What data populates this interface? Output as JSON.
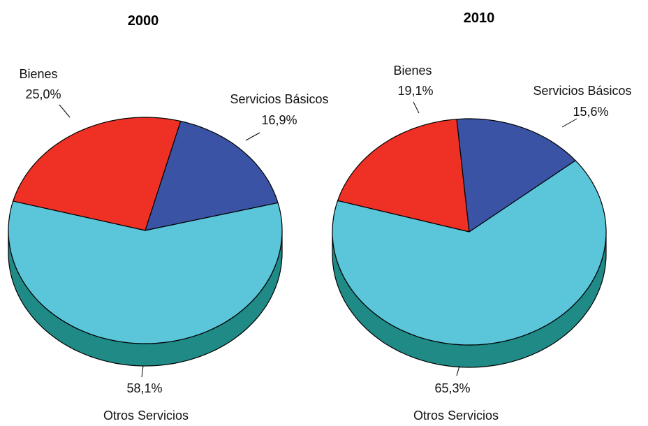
{
  "chart_data": [
    {
      "type": "pie",
      "title": "2000",
      "slices": [
        {
          "label": "Bienes",
          "value": 25.0,
          "value_label": "25,0%",
          "color": "#ee3124",
          "side_color": "#8b1313"
        },
        {
          "label": "Servicios Básicos",
          "value": 16.9,
          "value_label": "16,9%",
          "color": "#3a53a4",
          "side_color": "#27296e"
        },
        {
          "label": "Otros Servicios",
          "value": 58.1,
          "value_label": "58,1%",
          "color": "#5bc5da",
          "side_color": "#1f8a86"
        }
      ]
    },
    {
      "type": "pie",
      "title": "2010",
      "slices": [
        {
          "label": "Bienes",
          "value": 19.1,
          "value_label": "19,1%",
          "color": "#ee3124",
          "side_color": "#8b1313"
        },
        {
          "label": "Servicios Básicos",
          "value": 15.6,
          "value_label": "15,6%",
          "color": "#3a53a4",
          "side_color": "#27296e"
        },
        {
          "label": "Otros Servicios",
          "value": 65.3,
          "value_label": "65,3%",
          "color": "#5bc5da",
          "side_color": "#1f8a86"
        }
      ]
    }
  ]
}
